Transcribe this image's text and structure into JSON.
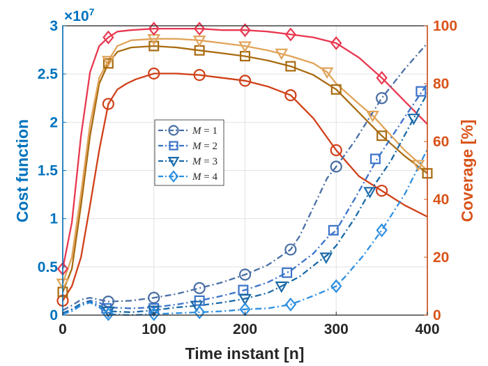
{
  "chart_data": {
    "type": "line",
    "title": "",
    "xlabel": "Time instant [n]",
    "ylabel_left": "Cost function",
    "ylabel_right": "Coverage [%]",
    "left_axis_multiplier": "×10",
    "left_axis_exponent": "7",
    "xlim": [
      0,
      400
    ],
    "ylim_left": [
      0,
      3
    ],
    "ylim_right": [
      0,
      100
    ],
    "xticks": [
      "0",
      "100",
      "200",
      "300",
      "400"
    ],
    "yticks_left": [
      "0",
      "0.5",
      "1",
      "1.5",
      "2",
      "2.5",
      "3"
    ],
    "yticks_right": [
      "0",
      "20",
      "40",
      "60",
      "80",
      "100"
    ],
    "grid": true,
    "legend_position": "center-left",
    "colors": {
      "left_axis": "#0072BD",
      "right_axis": "#D95319",
      "grid": "#e2e2e2",
      "cost_M1": "#4a6fa5",
      "cost_M2": "#3a73c9",
      "cost_M3": "#1a6aa8",
      "cost_M4": "#2e8fe0",
      "cov_M1": "#d04018",
      "cov_M2": "#a86b10",
      "cov_M3": "#e0a45a",
      "cov_M4": "#e83850"
    },
    "cost_series": [
      {
        "name": "M = 1",
        "legend_var": "M",
        "legend_val": "1",
        "marker": "circle",
        "color": "#4a6fa5",
        "x": [
          0,
          10,
          20,
          30,
          40,
          50,
          75,
          100,
          125,
          150,
          175,
          200,
          225,
          250,
          260,
          275,
          290,
          300,
          320,
          340,
          350,
          375,
          400
        ],
        "y": [
          0.05,
          0.1,
          0.16,
          0.18,
          0.16,
          0.14,
          0.15,
          0.18,
          0.22,
          0.28,
          0.34,
          0.42,
          0.52,
          0.68,
          0.82,
          1.12,
          1.42,
          1.54,
          1.8,
          2.1,
          2.25,
          2.55,
          2.82
        ],
        "markers_x": [
          50,
          100,
          150,
          200,
          250,
          300,
          350
        ],
        "markers_y": [
          0.14,
          0.18,
          0.28,
          0.42,
          0.68,
          1.54,
          2.25
        ]
      },
      {
        "name": "M = 2",
        "legend_var": "M",
        "legend_val": "2",
        "marker": "square",
        "color": "#3a73c9",
        "x": [
          0,
          10,
          20,
          30,
          40,
          50,
          75,
          100,
          125,
          150,
          175,
          200,
          225,
          250,
          275,
          290,
          300,
          320,
          345,
          375,
          400
        ],
        "y": [
          0.02,
          0.06,
          0.12,
          0.15,
          0.13,
          0.08,
          0.07,
          0.08,
          0.11,
          0.15,
          0.2,
          0.26,
          0.34,
          0.46,
          0.64,
          0.8,
          0.88,
          1.2,
          1.62,
          2.05,
          2.4
        ],
        "markers_x": [
          48,
          100,
          150,
          198,
          246,
          297,
          343,
          393
        ],
        "markers_y": [
          0.07,
          0.07,
          0.15,
          0.26,
          0.44,
          0.88,
          1.62,
          2.32
        ]
      },
      {
        "name": "M = 3",
        "legend_var": "M",
        "legend_val": "3",
        "marker": "triangle-down",
        "color": "#1a6aa8",
        "x": [
          0,
          10,
          20,
          30,
          40,
          50,
          75,
          100,
          125,
          150,
          175,
          200,
          225,
          240,
          260,
          280,
          290,
          300,
          320,
          337,
          360,
          385,
          400
        ],
        "y": [
          0.02,
          0.06,
          0.12,
          0.14,
          0.1,
          0.04,
          0.03,
          0.05,
          0.08,
          0.1,
          0.13,
          0.17,
          0.23,
          0.3,
          0.4,
          0.55,
          0.62,
          0.72,
          1.0,
          1.28,
          1.6,
          2.04,
          2.3
        ],
        "markers_x": [
          50,
          100,
          147,
          200,
          240,
          289,
          337,
          385
        ],
        "markers_y": [
          0.04,
          0.05,
          0.1,
          0.17,
          0.3,
          0.6,
          1.28,
          2.04
        ]
      },
      {
        "name": "M = 4",
        "legend_var": "M",
        "legend_val": "4",
        "marker": "diamond",
        "color": "#2e8fe0",
        "x": [
          0,
          10,
          20,
          30,
          40,
          50,
          75,
          100,
          125,
          150,
          175,
          200,
          225,
          250,
          275,
          300,
          310,
          330,
          350,
          375,
          400
        ],
        "y": [
          0.01,
          0.04,
          0.1,
          0.13,
          0.08,
          0.01,
          0.0,
          0.01,
          0.02,
          0.03,
          0.04,
          0.06,
          0.07,
          0.11,
          0.2,
          0.3,
          0.4,
          0.62,
          0.88,
          1.25,
          1.72
        ],
        "markers_x": [
          50,
          100,
          150,
          200,
          250,
          300,
          350
        ],
        "markers_y": [
          0.01,
          0.01,
          0.03,
          0.06,
          0.11,
          0.3,
          0.88
        ]
      }
    ],
    "coverage_series": [
      {
        "name": "Coverage M = 1",
        "marker": "circle",
        "color": "#d04018",
        "x": [
          0,
          10,
          20,
          30,
          40,
          50,
          60,
          70,
          80,
          90,
          100,
          125,
          150,
          175,
          200,
          225,
          250,
          275,
          300,
          325,
          350,
          375,
          400
        ],
        "y": [
          5,
          10,
          20,
          38,
          57,
          73,
          78,
          80,
          81.5,
          82.5,
          83.5,
          83.5,
          83,
          82,
          81,
          79,
          76,
          68,
          57,
          48,
          43,
          38,
          34
        ],
        "markers_x": [
          0,
          50,
          100,
          150,
          200,
          250,
          300,
          350
        ],
        "markers_y": [
          5,
          73,
          83.5,
          83,
          81,
          76,
          57,
          43
        ]
      },
      {
        "name": "Coverage M = 2",
        "marker": "square",
        "color": "#a86b10",
        "x": [
          0,
          10,
          20,
          30,
          40,
          50,
          60,
          75,
          100,
          125,
          150,
          175,
          200,
          225,
          250,
          275,
          300,
          325,
          350,
          375,
          400
        ],
        "y": [
          8,
          16,
          38,
          62,
          80,
          87,
          91,
          92.5,
          93,
          92.5,
          91.5,
          90.5,
          89.5,
          88,
          86,
          83,
          78,
          70,
          62,
          55,
          49
        ],
        "markers_x": [
          0,
          50,
          100,
          150,
          200,
          250,
          300,
          350,
          400
        ],
        "markers_y": [
          8,
          87,
          93,
          91.5,
          89.5,
          86,
          78,
          62,
          49
        ]
      },
      {
        "name": "Coverage M = 3",
        "marker": "triangle-down",
        "color": "#e0a45a",
        "x": [
          0,
          10,
          20,
          30,
          40,
          50,
          60,
          75,
          100,
          125,
          150,
          175,
          200,
          225,
          250,
          275,
          290,
          300,
          325,
          340,
          375,
          400
        ],
        "y": [
          11,
          20,
          42,
          66,
          82,
          88,
          93,
          95,
          95.5,
          95.5,
          95,
          94,
          93,
          91.5,
          89.5,
          87,
          84,
          80,
          73,
          69,
          57,
          50
        ],
        "markers_x": [
          0,
          50,
          100,
          150,
          200,
          240,
          290,
          340,
          390
        ],
        "markers_y": [
          11,
          88,
          95.5,
          95,
          93,
          90.5,
          84,
          69,
          52
        ]
      },
      {
        "name": "Coverage M = 4",
        "marker": "diamond",
        "color": "#e83850",
        "x": [
          0,
          10,
          20,
          30,
          40,
          50,
          60,
          75,
          100,
          125,
          150,
          175,
          200,
          225,
          250,
          275,
          300,
          325,
          350,
          375,
          400
        ],
        "y": [
          16,
          32,
          62,
          84,
          93,
          96,
          98,
          98.5,
          99,
          99,
          99,
          98.5,
          98.5,
          98,
          97,
          96,
          94,
          89,
          82,
          74,
          66
        ],
        "markers_x": [
          0,
          50,
          100,
          150,
          200,
          250,
          300,
          350
        ],
        "markers_y": [
          16,
          96,
          99,
          99,
          98.5,
          97,
          94,
          82
        ]
      }
    ]
  }
}
